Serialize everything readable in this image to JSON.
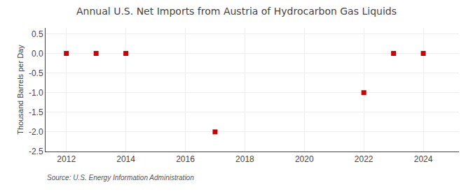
{
  "chart_data": {
    "type": "scatter",
    "title": "Annual U.S. Net Imports from Austria of Hydrocarbon Gas Liquids",
    "ylabel": "Thousand Barrels per Day",
    "source": "Source: U.S. Energy Information Administration",
    "x": [
      2012,
      2013,
      2014,
      2017,
      2022,
      2023,
      2024
    ],
    "values": [
      0,
      0,
      0,
      -2,
      -1,
      0,
      0
    ],
    "color": "#cc0000",
    "marker": "square",
    "xlim": [
      2011.3,
      2025.2
    ],
    "ylim": [
      -2.5,
      0.65
    ],
    "xticks": [
      2012,
      2014,
      2016,
      2018,
      2020,
      2022,
      2024
    ],
    "yticks": [
      0.5,
      {
        "value": 0,
        "label": "0.0"
      },
      -0.5,
      {
        "value": -1,
        "label": "-1.0"
      },
      -1.5,
      {
        "value": -2,
        "label": "-2.0"
      },
      -2.5
    ],
    "grid": true
  }
}
